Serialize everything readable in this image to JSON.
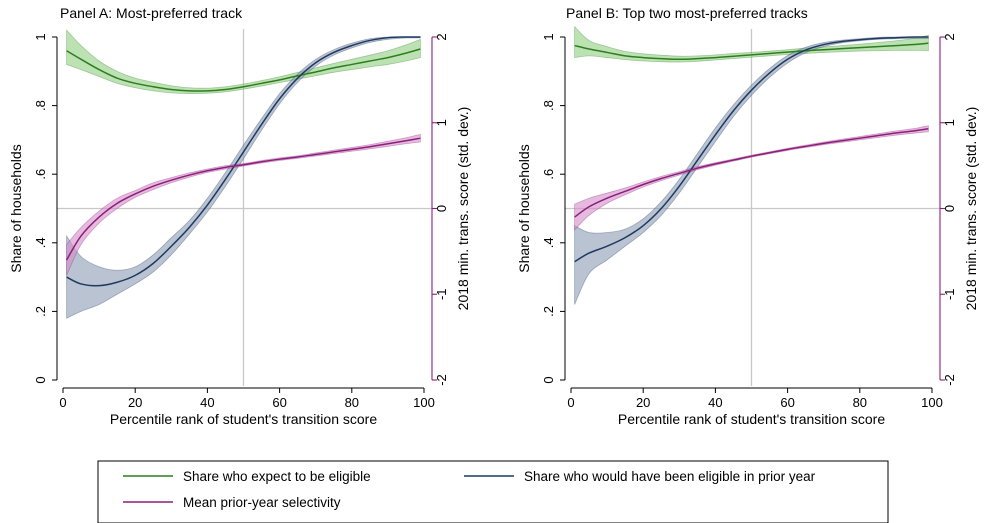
{
  "chart_data": [
    {
      "type": "line",
      "title": "Panel A: Most-preferred track",
      "xlabel": "Percentile rank of student's transition score",
      "ylabel": "Share of households",
      "y2label": "2018 min. trans. score (std. dev.)",
      "xlim": [
        0,
        100
      ],
      "ylim": [
        0,
        1
      ],
      "y2lim": [
        -2,
        2
      ],
      "x_ticks": [
        "0",
        "20",
        "40",
        "60",
        "80",
        "100"
      ],
      "y_ticks": [
        "0",
        ".2",
        ".4",
        ".6",
        ".8",
        "1"
      ],
      "y2_ticks": [
        "-2",
        "-1",
        "0",
        "1",
        "2"
      ],
      "reference_lines": {
        "x": 50,
        "y2": 0
      },
      "series": [
        {
          "name": "Share who expect to be eligible",
          "axis": "left",
          "color": "#2e7d1f",
          "band_color": "#8fcf80",
          "x": [
            1,
            5,
            10,
            15,
            20,
            25,
            30,
            35,
            40,
            45,
            50,
            55,
            60,
            65,
            70,
            75,
            80,
            85,
            90,
            95,
            99
          ],
          "y": [
            0.96,
            0.935,
            0.905,
            0.88,
            0.865,
            0.855,
            0.847,
            0.843,
            0.843,
            0.847,
            0.855,
            0.865,
            0.875,
            0.887,
            0.898,
            0.91,
            0.92,
            0.93,
            0.94,
            0.953,
            0.965
          ],
          "lower": [
            0.92,
            0.905,
            0.885,
            0.865,
            0.852,
            0.843,
            0.837,
            0.835,
            0.836,
            0.84,
            0.848,
            0.857,
            0.867,
            0.877,
            0.887,
            0.897,
            0.905,
            0.913,
            0.92,
            0.93,
            0.94
          ],
          "upper": [
            1.02,
            0.975,
            0.93,
            0.9,
            0.88,
            0.868,
            0.858,
            0.852,
            0.851,
            0.855,
            0.863,
            0.873,
            0.884,
            0.897,
            0.91,
            0.923,
            0.935,
            0.947,
            0.96,
            0.977,
            0.993
          ]
        },
        {
          "name": "Share who would have been eligible in prior year",
          "axis": "left",
          "color": "#1f3a60",
          "band_color": "#8a9bb3",
          "x": [
            1,
            5,
            10,
            15,
            20,
            25,
            30,
            35,
            40,
            45,
            50,
            55,
            60,
            65,
            70,
            75,
            80,
            85,
            90,
            95,
            99
          ],
          "y": [
            0.3,
            0.28,
            0.275,
            0.285,
            0.305,
            0.34,
            0.39,
            0.445,
            0.51,
            0.585,
            0.665,
            0.745,
            0.82,
            0.88,
            0.925,
            0.955,
            0.975,
            0.99,
            0.998,
            1.0,
            1.0
          ],
          "lower": [
            0.18,
            0.2,
            0.22,
            0.25,
            0.28,
            0.315,
            0.365,
            0.425,
            0.49,
            0.565,
            0.645,
            0.728,
            0.805,
            0.868,
            0.915,
            0.947,
            0.968,
            0.984,
            0.993,
            0.997,
            0.997
          ],
          "upper": [
            0.42,
            0.36,
            0.33,
            0.32,
            0.33,
            0.365,
            0.415,
            0.465,
            0.53,
            0.605,
            0.685,
            0.762,
            0.835,
            0.892,
            0.935,
            0.963,
            0.982,
            0.995,
            1.0,
            1.0,
            1.0
          ]
        },
        {
          "name": "Mean prior-year selectivity",
          "axis": "right",
          "color": "#8b1f7a",
          "band_color": "#d48cc8",
          "x": [
            1,
            5,
            10,
            15,
            20,
            25,
            30,
            35,
            40,
            45,
            50,
            55,
            60,
            65,
            70,
            75,
            80,
            85,
            90,
            95,
            99
          ],
          "y": [
            -0.6,
            -0.32,
            -0.1,
            0.06,
            0.17,
            0.26,
            0.33,
            0.39,
            0.44,
            0.48,
            0.51,
            0.545,
            0.575,
            0.6,
            0.63,
            0.66,
            0.69,
            0.72,
            0.755,
            0.79,
            0.82
          ],
          "lower": [
            -0.78,
            -0.42,
            -0.17,
            0.0,
            0.13,
            0.22,
            0.3,
            0.365,
            0.42,
            0.46,
            0.495,
            0.53,
            0.56,
            0.585,
            0.612,
            0.64,
            0.668,
            0.695,
            0.725,
            0.755,
            0.775
          ],
          "upper": [
            -0.42,
            -0.22,
            -0.03,
            0.12,
            0.21,
            0.3,
            0.36,
            0.415,
            0.46,
            0.5,
            0.525,
            0.56,
            0.59,
            0.615,
            0.648,
            0.68,
            0.712,
            0.745,
            0.785,
            0.825,
            0.865
          ]
        }
      ]
    },
    {
      "type": "line",
      "title": "Panel B: Top two most-preferred tracks",
      "xlabel": "Percentile rank of student's transition score",
      "ylabel": "Share of households",
      "y2label": "2018 min. trans. score (std. dev.)",
      "xlim": [
        0,
        100
      ],
      "ylim": [
        0,
        1
      ],
      "y2lim": [
        -2,
        2
      ],
      "x_ticks": [
        "0",
        "20",
        "40",
        "60",
        "80",
        "100"
      ],
      "y_ticks": [
        "0",
        ".2",
        ".4",
        ".6",
        ".8",
        "1"
      ],
      "y2_ticks": [
        "-2",
        "-1",
        "0",
        "1",
        "2"
      ],
      "reference_lines": {
        "x": 50,
        "y2": 0
      },
      "series": [
        {
          "name": "Share who expect to be eligible",
          "axis": "left",
          "color": "#2e7d1f",
          "band_color": "#8fcf80",
          "x": [
            1,
            5,
            10,
            15,
            20,
            25,
            30,
            35,
            40,
            45,
            50,
            55,
            60,
            65,
            70,
            75,
            80,
            85,
            90,
            95,
            99
          ],
          "y": [
            0.975,
            0.965,
            0.955,
            0.945,
            0.94,
            0.937,
            0.935,
            0.937,
            0.94,
            0.944,
            0.948,
            0.952,
            0.956,
            0.96,
            0.963,
            0.966,
            0.969,
            0.972,
            0.975,
            0.978,
            0.982
          ],
          "lower": [
            0.94,
            0.945,
            0.94,
            0.934,
            0.93,
            0.928,
            0.927,
            0.929,
            0.933,
            0.937,
            0.941,
            0.945,
            0.949,
            0.952,
            0.955,
            0.957,
            0.959,
            0.96,
            0.961,
            0.961,
            0.96
          ],
          "upper": [
            1.03,
            0.99,
            0.972,
            0.958,
            0.951,
            0.947,
            0.944,
            0.945,
            0.948,
            0.952,
            0.955,
            0.959,
            0.963,
            0.968,
            0.971,
            0.975,
            0.979,
            0.984,
            0.989,
            0.996,
            1.005
          ]
        },
        {
          "name": "Share who would have been eligible in prior year",
          "axis": "left",
          "color": "#1f3a60",
          "band_color": "#8a9bb3",
          "x": [
            1,
            5,
            10,
            15,
            20,
            25,
            30,
            35,
            40,
            45,
            50,
            55,
            60,
            65,
            70,
            75,
            80,
            85,
            90,
            95,
            99
          ],
          "y": [
            0.345,
            0.37,
            0.39,
            0.415,
            0.45,
            0.5,
            0.565,
            0.64,
            0.715,
            0.785,
            0.845,
            0.895,
            0.935,
            0.962,
            0.978,
            0.987,
            0.992,
            0.996,
            0.998,
            1.0,
            1.0
          ],
          "lower": [
            0.22,
            0.31,
            0.35,
            0.39,
            0.43,
            0.48,
            0.545,
            0.62,
            0.695,
            0.768,
            0.83,
            0.882,
            0.924,
            0.954,
            0.972,
            0.983,
            0.989,
            0.993,
            0.995,
            0.996,
            0.996
          ],
          "upper": [
            0.45,
            0.43,
            0.43,
            0.44,
            0.47,
            0.52,
            0.585,
            0.66,
            0.735,
            0.802,
            0.86,
            0.908,
            0.946,
            0.97,
            0.984,
            0.991,
            0.995,
            0.999,
            1.0,
            1.0,
            1.0
          ]
        },
        {
          "name": "Mean prior-year selectivity",
          "axis": "right",
          "color": "#8b1f7a",
          "band_color": "#d48cc8",
          "x": [
            1,
            5,
            10,
            15,
            20,
            25,
            30,
            35,
            40,
            45,
            50,
            55,
            60,
            65,
            70,
            75,
            80,
            85,
            90,
            95,
            99
          ],
          "y": [
            -0.1,
            0.02,
            0.12,
            0.2,
            0.28,
            0.35,
            0.41,
            0.47,
            0.52,
            0.565,
            0.61,
            0.65,
            0.69,
            0.725,
            0.76,
            0.79,
            0.82,
            0.85,
            0.88,
            0.905,
            0.93
          ],
          "lower": [
            -0.25,
            -0.08,
            0.06,
            0.16,
            0.25,
            0.325,
            0.39,
            0.452,
            0.505,
            0.552,
            0.598,
            0.638,
            0.677,
            0.711,
            0.744,
            0.772,
            0.8,
            0.828,
            0.855,
            0.878,
            0.895
          ],
          "upper": [
            0.05,
            0.12,
            0.18,
            0.24,
            0.31,
            0.375,
            0.43,
            0.488,
            0.535,
            0.578,
            0.622,
            0.662,
            0.703,
            0.739,
            0.776,
            0.808,
            0.84,
            0.872,
            0.905,
            0.932,
            0.965
          ]
        }
      ]
    }
  ],
  "legend": {
    "position": "bottom",
    "items": [
      {
        "label": "Share who expect to be eligible",
        "color": "#2e7d1f"
      },
      {
        "label": "Share who would have been eligible in prior year",
        "color": "#1f3a60"
      },
      {
        "label": "Mean prior-year selectivity",
        "color": "#8b1f7a"
      }
    ]
  }
}
